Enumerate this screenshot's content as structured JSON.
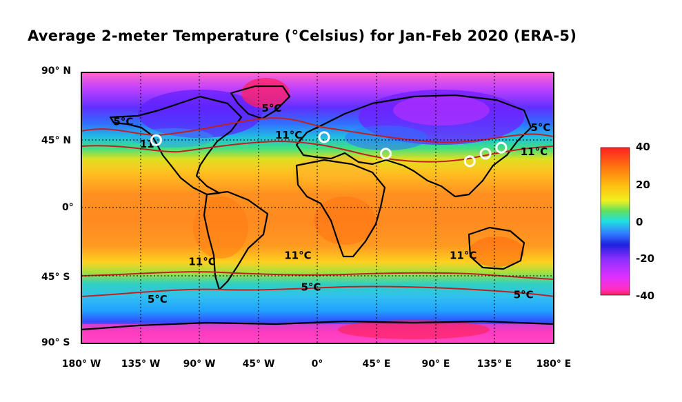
{
  "title": "Average 2-meter Temperature (°Celsius) for Jan-Feb 2020 (ERA-5)",
  "lat_labels": [
    "90° N",
    "45° N",
    "0°",
    "45° S",
    "90° S"
  ],
  "lon_labels": [
    "180° W",
    "135° W",
    "90° W",
    "45° W",
    "0°",
    "45° E",
    "90° E",
    "135° E",
    "180° E"
  ],
  "colorbar": {
    "ticks": [
      "40",
      "20",
      "0",
      "-20",
      "-40"
    ],
    "range": [
      -40,
      40
    ]
  },
  "contour_labels": [
    {
      "text": "5°C",
      "lon": -148,
      "lat": 55
    },
    {
      "text": "11",
      "lon": -130,
      "lat": 40
    },
    {
      "text": "5°C",
      "lon": -35,
      "lat": 64
    },
    {
      "text": "11°C",
      "lon": -22,
      "lat": 46
    },
    {
      "text": "5°C",
      "lon": 170,
      "lat": 51
    },
    {
      "text": "11°C",
      "lon": 165,
      "lat": 35
    },
    {
      "text": "11°C",
      "lon": -88,
      "lat": -38
    },
    {
      "text": "11°C",
      "lon": -15,
      "lat": -34
    },
    {
      "text": "11°C",
      "lon": 111,
      "lat": -34
    },
    {
      "text": "5°C",
      "lon": -122,
      "lat": -63
    },
    {
      "text": "5°C",
      "lon": -5,
      "lat": -55
    },
    {
      "text": "5°C",
      "lon": 157,
      "lat": -60
    }
  ],
  "markers": [
    {
      "name": "marker-seattle",
      "lon": -123,
      "lat": 45
    },
    {
      "name": "marker-paris",
      "lon": 5,
      "lat": 47
    },
    {
      "name": "marker-tehran",
      "lon": 52,
      "lat": 36
    },
    {
      "name": "marker-shanghai",
      "lon": 116,
      "lat": 31
    },
    {
      "name": "marker-seoul",
      "lon": 128,
      "lat": 36
    },
    {
      "name": "marker-japan",
      "lon": 140,
      "lat": 40
    }
  ],
  "colors": {
    "contour": "#c02020",
    "coast": "#000000",
    "marker": "#ffffff"
  }
}
